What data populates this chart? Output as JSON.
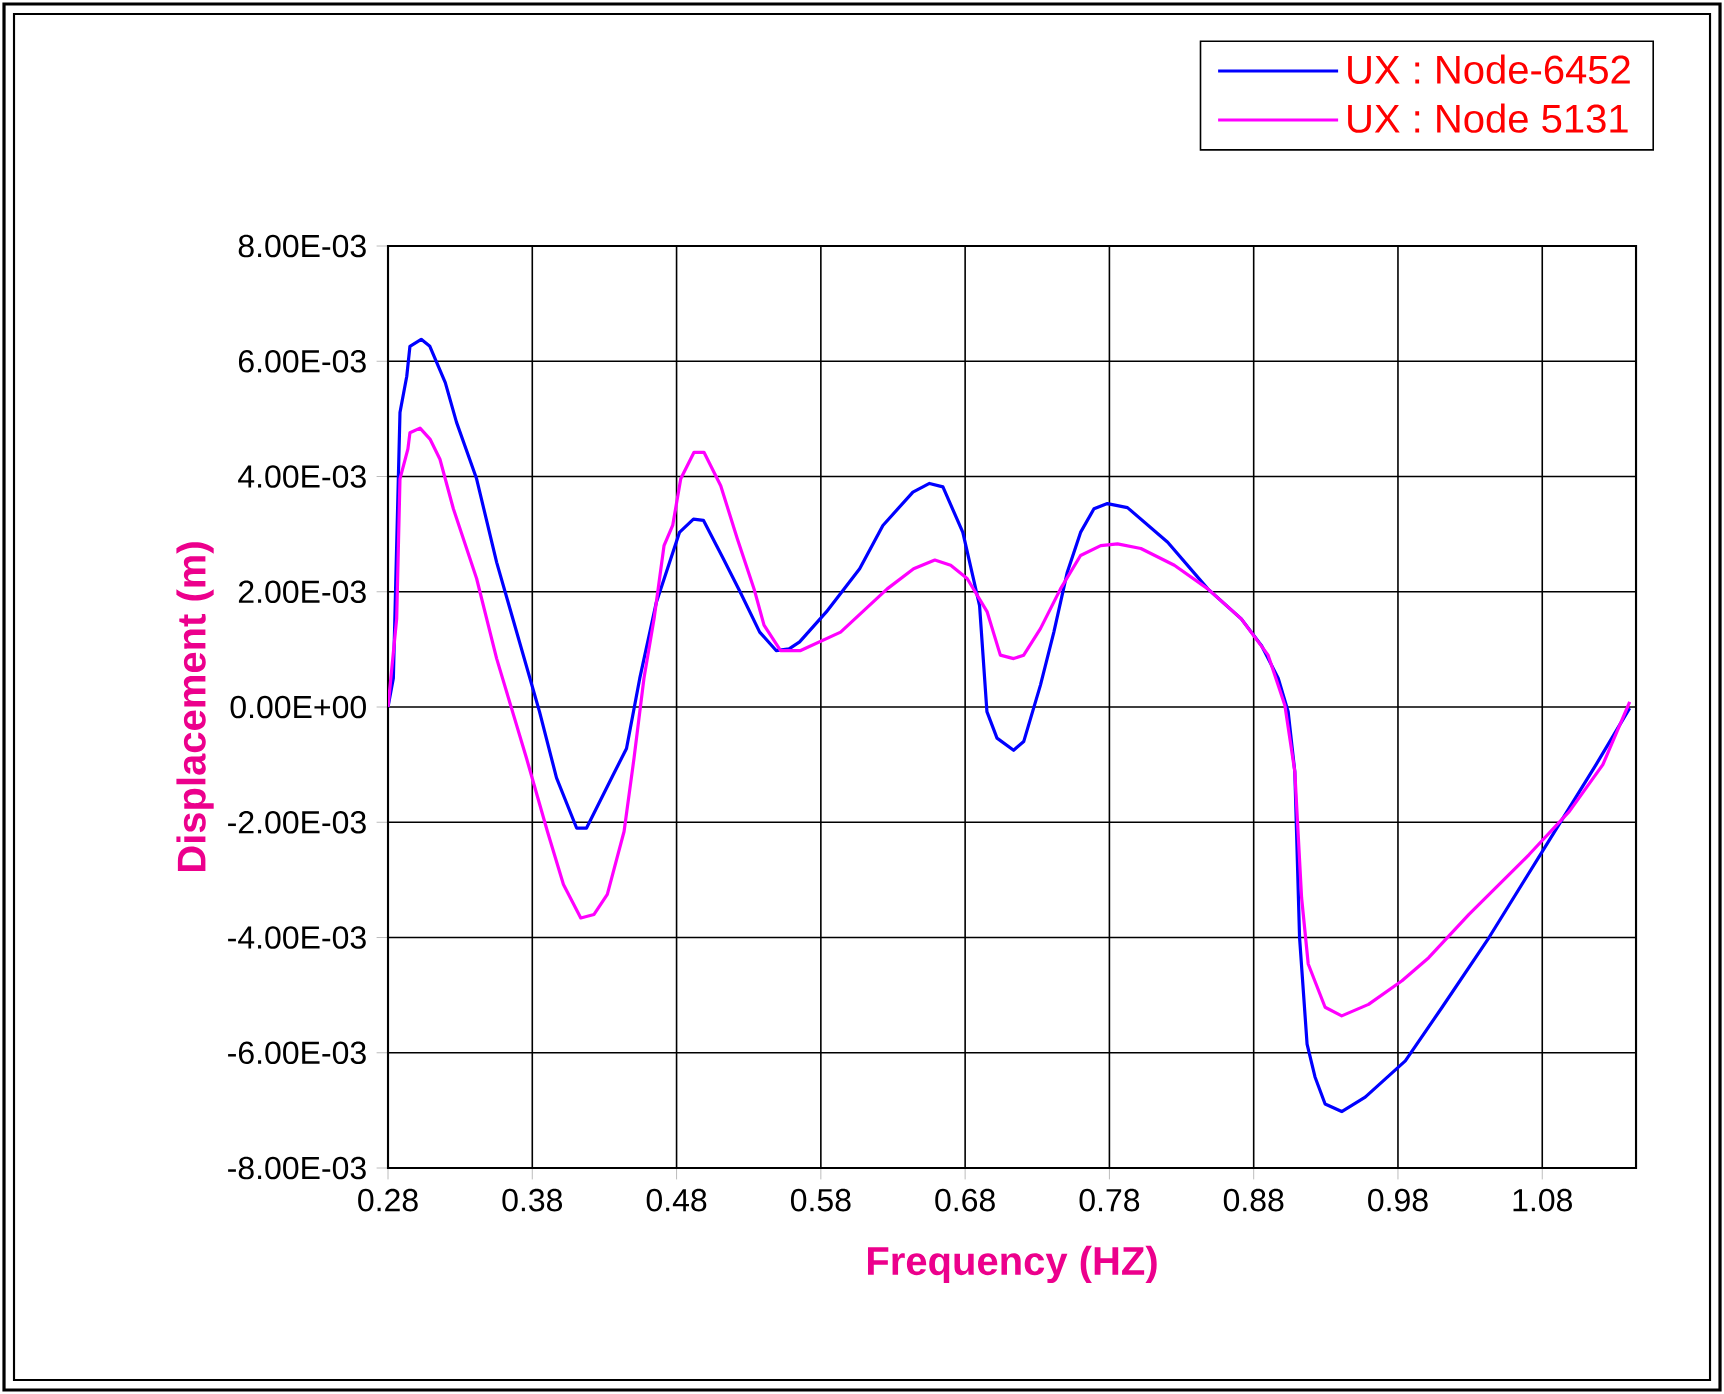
{
  "chart_data": {
    "type": "line",
    "xlabel": "Frequency (HZ)",
    "ylabel": "Displacement (m)",
    "xlim": [
      0.28,
      1.145
    ],
    "ylim": [
      -0.008,
      0.008
    ],
    "xticks": [
      0.28,
      0.38,
      0.48,
      0.58,
      0.68,
      0.78,
      0.88,
      0.98,
      1.08
    ],
    "yticks": [
      {
        "value": -0.008,
        "label": "-8.00E-03"
      },
      {
        "value": -0.006,
        "label": "-6.00E-03"
      },
      {
        "value": -0.004,
        "label": "-4.00E-03"
      },
      {
        "value": -0.002,
        "label": "-2.00E-03"
      },
      {
        "value": 0,
        "label": "0.00E+00"
      },
      {
        "value": 0.002,
        "label": "2.00E-03"
      },
      {
        "value": 0.004,
        "label": "4.00E-03"
      },
      {
        "value": 0.006,
        "label": "6.00E-03"
      },
      {
        "value": 0.008,
        "label": "8.00E-03"
      }
    ],
    "grid": true,
    "legend": "top right",
    "series": [
      {
        "name": "UX : Node-6452",
        "color": "#0000ff",
        "x": [
          0.28,
          0.2837,
          0.2883,
          0.293,
          0.2952,
          0.303,
          0.309,
          0.3197,
          0.3275,
          0.3414,
          0.3553,
          0.385,
          0.3968,
          0.4107,
          0.4176,
          0.436,
          0.4453,
          0.4545,
          0.466,
          0.482,
          0.4917,
          0.4986,
          0.5125,
          0.524,
          0.5376,
          0.549,
          0.558,
          0.5653,
          0.5838,
          0.6069,
          0.623,
          0.6438,
          0.6553,
          0.6646,
          0.6784,
          0.69,
          0.6951,
          0.7021,
          0.7136,
          0.7206,
          0.7322,
          0.7415,
          0.7508,
          0.76,
          0.7693,
          0.7786,
          0.7925,
          0.8204,
          0.8482,
          0.8714,
          0.8853,
          0.897,
          0.9039,
          0.9085,
          0.9118,
          0.917,
          0.9225,
          0.9295,
          0.941,
          0.9573,
          0.9851,
          1.0106,
          1.0431,
          1.0802,
          1.1173,
          1.1406
        ],
        "values": [
          0,
          0.0005,
          0.00511,
          0.00574,
          0.00626,
          0.00638,
          0.00626,
          0.00563,
          0.00494,
          0.00396,
          0.00251,
          -8e-05,
          -0.00123,
          -0.0021,
          -0.0021,
          -0.00118,
          -0.00072,
          0.0005,
          0.00182,
          0.00303,
          0.00326,
          0.00324,
          0.00257,
          0.002,
          0.0013,
          0.00098,
          0.00101,
          0.00113,
          0.00165,
          0.0024,
          0.00315,
          0.00373,
          0.00388,
          0.00382,
          0.00303,
          0.00176,
          -8e-05,
          -0.00054,
          -0.00075,
          -0.0006,
          0.00038,
          0.0013,
          0.00234,
          0.00303,
          0.00344,
          0.00353,
          0.00346,
          0.00286,
          0.00205,
          0.00153,
          0.00107,
          0.0005,
          -8e-05,
          -0.00112,
          -0.004,
          -0.00585,
          -0.00642,
          -0.00689,
          -0.00702,
          -0.00677,
          -0.00614,
          -0.00521,
          -0.004,
          -0.0025,
          -0.001,
          -2e-05
        ]
      },
      {
        "name": "UX : Node 5131",
        "color": "#ff00ff",
        "x": [
          0.28,
          0.286,
          0.2883,
          0.2938,
          0.2952,
          0.3022,
          0.3091,
          0.316,
          0.3253,
          0.3414,
          0.3553,
          0.376,
          0.3905,
          0.4016,
          0.4136,
          0.4228,
          0.432,
          0.4436,
          0.4505,
          0.4574,
          0.4644,
          0.4713,
          0.4773,
          0.4829,
          0.4921,
          0.499,
          0.5106,
          0.5221,
          0.5337,
          0.5406,
          0.5521,
          0.566,
          0.5937,
          0.626,
          0.6443,
          0.659,
          0.67,
          0.6814,
          0.6953,
          0.7044,
          0.7136,
          0.7206,
          0.7322,
          0.7461,
          0.76,
          0.774,
          0.7856,
          0.8018,
          0.825,
          0.8482,
          0.8714,
          0.89,
          0.9016,
          0.9085,
          0.9132,
          0.9178,
          0.9295,
          0.941,
          0.9596,
          0.9828,
          1.0013,
          1.0292,
          1.0709,
          1.0988,
          1.122,
          1.1406
        ],
        "values": [
          0,
          0.00153,
          0.00396,
          0.00448,
          0.00476,
          0.00484,
          0.00465,
          0.0043,
          0.00344,
          0.00223,
          0.00084,
          -0.00089,
          -0.00216,
          -0.00308,
          -0.00366,
          -0.0036,
          -0.00325,
          -0.00216,
          -0.00089,
          0.0005,
          0.00153,
          0.0028,
          0.00315,
          0.00396,
          0.00442,
          0.00442,
          0.00384,
          0.00292,
          0.00205,
          0.00142,
          0.00098,
          0.00098,
          0.0013,
          0.00205,
          0.0024,
          0.00255,
          0.00246,
          0.00223,
          0.00165,
          0.0009,
          0.00084,
          0.0009,
          0.00136,
          0.00205,
          0.00263,
          0.0028,
          0.00283,
          0.00275,
          0.00246,
          0.00205,
          0.00153,
          0.0009,
          3e-05,
          -0.00112,
          -0.00331,
          -0.00446,
          -0.00521,
          -0.00536,
          -0.00516,
          -0.00475,
          -0.00435,
          -0.0036,
          -0.00256,
          -0.00181,
          -0.001,
          9e-05
        ]
      }
    ]
  }
}
